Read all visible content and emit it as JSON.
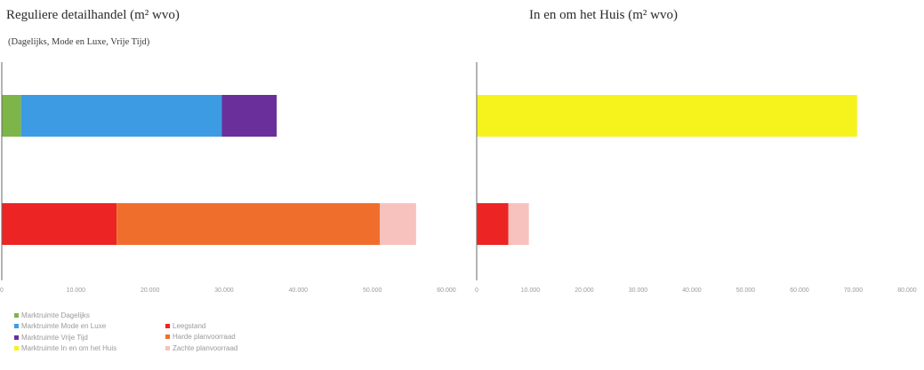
{
  "chart_data": [
    {
      "type": "bar",
      "orientation": "horizontal",
      "stacked": true,
      "title": "Reguliere detailhandel (m² wvo)",
      "subtitle": "(Dagelijks, Mode en Luxe, Vrije Tijd)",
      "xlim": [
        0,
        60000
      ],
      "xticks": [
        0,
        10000,
        20000,
        30000,
        40000,
        50000,
        60000
      ],
      "xtick_labels": [
        "0",
        "10.000",
        "20.000",
        "30.000",
        "40.000",
        "50.000",
        "60.000"
      ],
      "grid": false,
      "bars": [
        {
          "segments": [
            {
              "series": "Marktruimte Dagelijks",
              "value": 2600
            },
            {
              "series": "Marktruimte Mode en Luxe",
              "value": 27100
            },
            {
              "series": "Marktruimte Vrije Tijd",
              "value": 7400
            }
          ]
        },
        {
          "segments": [
            {
              "series": "Leegstand",
              "value": 15500
            },
            {
              "series": "Harde planvoorraad",
              "value": 35500
            },
            {
              "series": "Zachte planvoorraad",
              "value": 4900
            }
          ]
        }
      ]
    },
    {
      "type": "bar",
      "orientation": "horizontal",
      "stacked": true,
      "title": "In en om het Huis (m² wvo)",
      "subtitle": "",
      "xlim": [
        0,
        80000
      ],
      "xticks": [
        0,
        10000,
        20000,
        30000,
        40000,
        50000,
        60000,
        70000,
        80000
      ],
      "xtick_labels": [
        "0",
        "10.000",
        "20.000",
        "30.000",
        "40.000",
        "50.000",
        "60.000",
        "70.000",
        "80.000"
      ],
      "grid": false,
      "bars": [
        {
          "segments": [
            {
              "series": "Marktruimte In en om het Huis",
              "value": 70700
            }
          ]
        },
        {
          "segments": [
            {
              "series": "Leegstand",
              "value": 5900
            },
            {
              "series": "Zachte planvoorraad",
              "value": 3800
            }
          ]
        }
      ]
    }
  ],
  "series_colors": {
    "Marktruimte Dagelijks": "#7db549",
    "Marktruimte Mode en Luxe": "#3d9be3",
    "Marktruimte Vrije Tijd": "#6a2f9a",
    "Marktruimte In en om het Huis": "#f6f31c",
    "Leegstand": "#ec2424",
    "Harde planvoorraad": "#f06e2c",
    "Zachte planvoorraad": "#f7c2bd"
  },
  "legend": {
    "placement": "bottom-left",
    "left": [
      {
        "label": "Marktruimte Dagelijks",
        "color": "#7db549"
      },
      {
        "label": "Marktruimte Mode en Luxe",
        "color": "#3d9be3"
      },
      {
        "label": "Marktruimte Vrije Tijd",
        "color": "#6a2f9a"
      },
      {
        "label": "Marktruimte In en om het Huis",
        "color": "#f6f31c"
      }
    ],
    "right": [
      {
        "label": "Leegstand",
        "color": "#ec2424"
      },
      {
        "label": "Harde planvoorraad",
        "color": "#f06e2c"
      },
      {
        "label": "Zachte planvoorraad",
        "color": "#f7c2bd"
      }
    ]
  }
}
